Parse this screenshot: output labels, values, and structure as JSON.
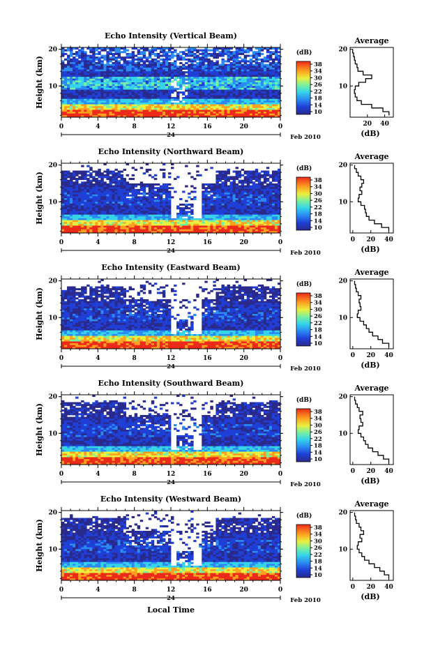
{
  "figure": {
    "bottom_xlabel": "Local Time",
    "month_label": "Feb 2010",
    "day_label": "24"
  },
  "chart_data": [
    {
      "type": "heatmap",
      "title": "Echo Intensity (Vertical Beam)",
      "ylabel": "Height (km)",
      "colorbar_label": "(dB)",
      "x_ticks": [
        "0",
        "4",
        "8",
        "12",
        "16",
        "20",
        "0"
      ],
      "y_ticks": [
        "10",
        "20"
      ],
      "xlim": [
        0,
        24
      ],
      "ylim": [
        1.5,
        20.5
      ],
      "clim": [
        10,
        38
      ],
      "colorbar_ticks": [
        "38",
        "34",
        "30",
        "26",
        "22",
        "18",
        "14",
        "10"
      ],
      "profile": {
        "title": "Average",
        "xlabel": "(dB)",
        "x_ticks": [
          "20",
          "40"
        ],
        "y_ticks": [
          "10",
          "20"
        ],
        "xlim": [
          0,
          50
        ],
        "y": [
          2,
          3,
          4,
          5,
          6,
          7,
          8,
          9,
          10,
          11,
          12,
          13,
          14,
          15,
          16,
          17,
          18,
          19,
          20
        ],
        "x": [
          45,
          38,
          25,
          13,
          8,
          6,
          5,
          6,
          10,
          18,
          25,
          15,
          9,
          8,
          6,
          5,
          4,
          3,
          3
        ]
      }
    },
    {
      "type": "heatmap",
      "title": "Echo Intensity (Northward Beam)",
      "ylabel": "Height (km)",
      "colorbar_label": "(dB)",
      "x_ticks": [
        "0",
        "4",
        "8",
        "12",
        "16",
        "20",
        "0"
      ],
      "y_ticks": [
        "10",
        "20"
      ],
      "xlim": [
        0,
        24
      ],
      "ylim": [
        1.5,
        20.5
      ],
      "clim": [
        10,
        38
      ],
      "colorbar_ticks": [
        "38",
        "34",
        "30",
        "26",
        "22",
        "18",
        "14",
        "10"
      ],
      "profile": {
        "title": "Average",
        "xlabel": "(dB)",
        "x_ticks": [
          "0",
          "20",
          "40"
        ],
        "y_ticks": [
          "10",
          "20"
        ],
        "xlim": [
          -3,
          45
        ],
        "y": [
          2,
          3,
          4,
          5,
          6,
          7,
          8,
          9,
          10,
          11,
          12,
          13,
          14,
          15,
          16,
          17,
          18,
          19,
          20
        ],
        "x": [
          40,
          32,
          24,
          18,
          15,
          14,
          13,
          9,
          6,
          7,
          10,
          8,
          10,
          12,
          9,
          6,
          4,
          2,
          2
        ]
      }
    },
    {
      "type": "heatmap",
      "title": "Echo Intensity (Eastward Beam)",
      "ylabel": "Height (km)",
      "colorbar_label": "(dB)",
      "x_ticks": [
        "0",
        "4",
        "8",
        "12",
        "16",
        "20",
        "0"
      ],
      "y_ticks": [
        "10",
        "20"
      ],
      "xlim": [
        0,
        24
      ],
      "ylim": [
        1.5,
        20.5
      ],
      "clim": [
        10,
        38
      ],
      "colorbar_ticks": [
        "38",
        "34",
        "30",
        "26",
        "22",
        "18",
        "14",
        "10"
      ],
      "profile": {
        "title": "Average",
        "xlabel": "(dB)",
        "x_ticks": [
          "0",
          "20",
          "40"
        ],
        "y_ticks": [
          "10",
          "20"
        ],
        "xlim": [
          -3,
          45
        ],
        "y": [
          2,
          3,
          4,
          5,
          6,
          7,
          8,
          9,
          10,
          11,
          12,
          13,
          14,
          15,
          16,
          17,
          18,
          19,
          20
        ],
        "x": [
          40,
          33,
          28,
          22,
          18,
          15,
          12,
          8,
          5,
          6,
          9,
          8,
          7,
          9,
          6,
          4,
          3,
          2,
          2
        ]
      }
    },
    {
      "type": "heatmap",
      "title": "Echo Intensity (Southward Beam)",
      "ylabel": "Height (km)",
      "colorbar_label": "(dB)",
      "x_ticks": [
        "0",
        "4",
        "8",
        "12",
        "16",
        "20",
        "0"
      ],
      "y_ticks": [
        "10",
        "20"
      ],
      "xlim": [
        0,
        24
      ],
      "ylim": [
        1.5,
        20.5
      ],
      "clim": [
        10,
        38
      ],
      "colorbar_ticks": [
        "38",
        "34",
        "30",
        "26",
        "22",
        "18",
        "14",
        "10"
      ],
      "profile": {
        "title": "Average",
        "xlabel": "(dB)",
        "x_ticks": [
          "0",
          "20",
          "40"
        ],
        "y_ticks": [
          "10",
          "20"
        ],
        "xlim": [
          -3,
          45
        ],
        "y": [
          2,
          3,
          4,
          5,
          6,
          7,
          8,
          9,
          10,
          11,
          12,
          13,
          14,
          15,
          16,
          17,
          18,
          19,
          20
        ],
        "x": [
          40,
          34,
          28,
          22,
          17,
          14,
          12,
          9,
          6,
          7,
          11,
          9,
          8,
          11,
          7,
          5,
          3,
          2,
          2
        ]
      }
    },
    {
      "type": "heatmap",
      "title": "Echo Intensity (Westward Beam)",
      "ylabel": "Height (km)",
      "colorbar_label": "(dB)",
      "x_ticks": [
        "0",
        "4",
        "8",
        "12",
        "16",
        "20",
        "0"
      ],
      "y_ticks": [
        "10",
        "20"
      ],
      "xlim": [
        0,
        24
      ],
      "ylim": [
        1.5,
        20.5
      ],
      "clim": [
        10,
        38
      ],
      "colorbar_ticks": [
        "38",
        "34",
        "30",
        "26",
        "22",
        "18",
        "14",
        "10"
      ],
      "profile": {
        "title": "Average",
        "xlabel": "(dB)",
        "x_ticks": [
          "0",
          "20",
          "40"
        ],
        "y_ticks": [
          "10",
          "20"
        ],
        "xlim": [
          -3,
          45
        ],
        "y": [
          2,
          3,
          4,
          5,
          6,
          7,
          8,
          9,
          10,
          11,
          12,
          13,
          14,
          15,
          16,
          17,
          18,
          19,
          20
        ],
        "x": [
          40,
          35,
          30,
          24,
          18,
          13,
          10,
          7,
          5,
          6,
          10,
          8,
          12,
          9,
          7,
          4,
          3,
          2,
          2
        ]
      }
    }
  ]
}
